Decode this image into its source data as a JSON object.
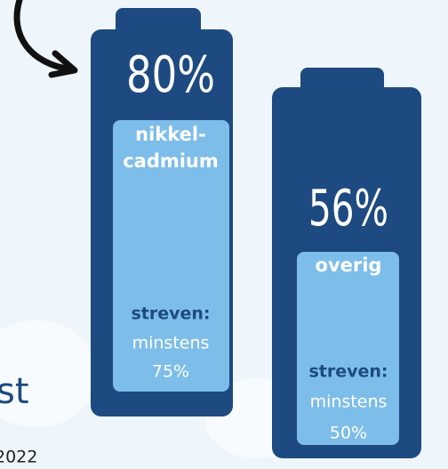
{
  "batteries": [
    {
      "percent": "80%",
      "label": [
        "nikkel-",
        "cadmium"
      ],
      "target_title": "streven:",
      "target_text": "minstens",
      "target_value": "75%"
    },
    {
      "percent": "56%",
      "label": [
        "overig"
      ],
      "target_title": "streven:",
      "target_text": "minstens",
      "target_value": "50%"
    }
  ],
  "fragments": {
    "heading": "st",
    "year": "2022"
  }
}
